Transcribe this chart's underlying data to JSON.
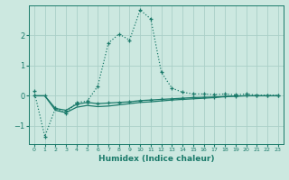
{
  "x": [
    0,
    1,
    2,
    3,
    4,
    5,
    6,
    7,
    8,
    9,
    10,
    11,
    12,
    13,
    14,
    15,
    16,
    17,
    18,
    19,
    20,
    21,
    22,
    23
  ],
  "line_main": [
    0.15,
    -1.35,
    -0.42,
    -0.58,
    -0.22,
    -0.18,
    0.32,
    1.75,
    2.05,
    1.85,
    2.85,
    2.55,
    0.78,
    0.25,
    0.12,
    0.06,
    0.06,
    0.04,
    0.06,
    0.03,
    0.06,
    0.02,
    0.02,
    0.02
  ],
  "line_upper": [
    0.0,
    0.0,
    -0.42,
    -0.48,
    -0.28,
    -0.22,
    -0.26,
    -0.24,
    -0.22,
    -0.2,
    -0.16,
    -0.14,
    -0.12,
    -0.1,
    -0.08,
    -0.06,
    -0.05,
    -0.04,
    -0.02,
    -0.01,
    0.0,
    0.0,
    0.0,
    0.0
  ],
  "line_lower": [
    0.0,
    0.0,
    -0.48,
    -0.56,
    -0.38,
    -0.32,
    -0.36,
    -0.34,
    -0.3,
    -0.26,
    -0.22,
    -0.2,
    -0.17,
    -0.14,
    -0.12,
    -0.1,
    -0.08,
    -0.06,
    -0.03,
    -0.01,
    0.0,
    0.0,
    0.0,
    0.0
  ],
  "xlabel": "Humidex (Indice chaleur)",
  "color": "#1a7a6a",
  "bg_color": "#cce8e0",
  "grid_color": "#aacfc8",
  "ylim": [
    -1.6,
    3.0
  ],
  "xlim": [
    -0.5,
    23.5
  ]
}
